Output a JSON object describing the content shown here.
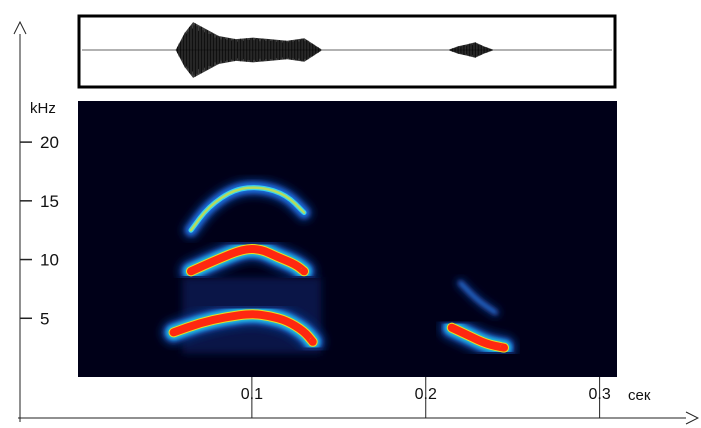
{
  "chart_data": [
    {
      "type": "line",
      "panel": "waveform",
      "title": "",
      "xlabel": "",
      "ylabel": "",
      "x_range_sec": [
        0,
        0.31
      ],
      "envelope": {
        "x": [
          0.055,
          0.06,
          0.065,
          0.07,
          0.08,
          0.09,
          0.1,
          0.11,
          0.12,
          0.13,
          0.135,
          0.14
        ],
        "y": [
          0.02,
          0.55,
          0.9,
          0.75,
          0.45,
          0.35,
          0.4,
          0.35,
          0.3,
          0.38,
          0.2,
          0.02
        ]
      },
      "envelope2": {
        "x": [
          0.215,
          0.22,
          0.225,
          0.23,
          0.235,
          0.24
        ],
        "y": [
          0.02,
          0.12,
          0.18,
          0.25,
          0.12,
          0.02
        ]
      }
    },
    {
      "type": "heatmap",
      "panel": "spectrogram",
      "title": "",
      "ylabel": "kHz",
      "xlabel": "сек",
      "x_ticks": [
        "0.1",
        "0.2",
        "0.3"
      ],
      "x_tick_values": [
        0.1,
        0.2,
        0.3
      ],
      "y_ticks": [
        "20",
        "15",
        "10",
        "5"
      ],
      "y_tick_values": [
        20,
        15,
        10,
        5
      ],
      "xlim": [
        0,
        0.31
      ],
      "ylim": [
        0,
        23.5
      ],
      "colormap": "jet",
      "background_color": "#000018",
      "series": [
        {
          "harmonic": 1,
          "intensity": "high",
          "x": [
            0.055,
            0.07,
            0.085,
            0.1,
            0.11,
            0.12,
            0.13,
            0.135
          ],
          "y": [
            3.8,
            4.6,
            5.1,
            5.4,
            5.2,
            4.8,
            3.9,
            3.0
          ]
        },
        {
          "harmonic": 2,
          "intensity": "high",
          "x": [
            0.065,
            0.08,
            0.095,
            0.105,
            0.115,
            0.125,
            0.13
          ],
          "y": [
            9.0,
            10.0,
            10.9,
            10.9,
            10.2,
            9.6,
            9.0
          ]
        },
        {
          "harmonic": 3,
          "intensity": "medium",
          "x": [
            0.065,
            0.075,
            0.09,
            0.105,
            0.12,
            0.13
          ],
          "y": [
            12.5,
            14.5,
            16.0,
            16.2,
            15.5,
            14.0
          ]
        },
        {
          "harmonic": 1,
          "intensity": "high",
          "x": [
            0.215,
            0.225,
            0.235,
            0.245
          ],
          "y": [
            4.2,
            3.5,
            2.8,
            2.5
          ]
        },
        {
          "harmonic": 2,
          "intensity": "low",
          "x": [
            0.22,
            0.23,
            0.24
          ],
          "y": [
            8.0,
            6.5,
            5.5
          ]
        }
      ]
    }
  ]
}
